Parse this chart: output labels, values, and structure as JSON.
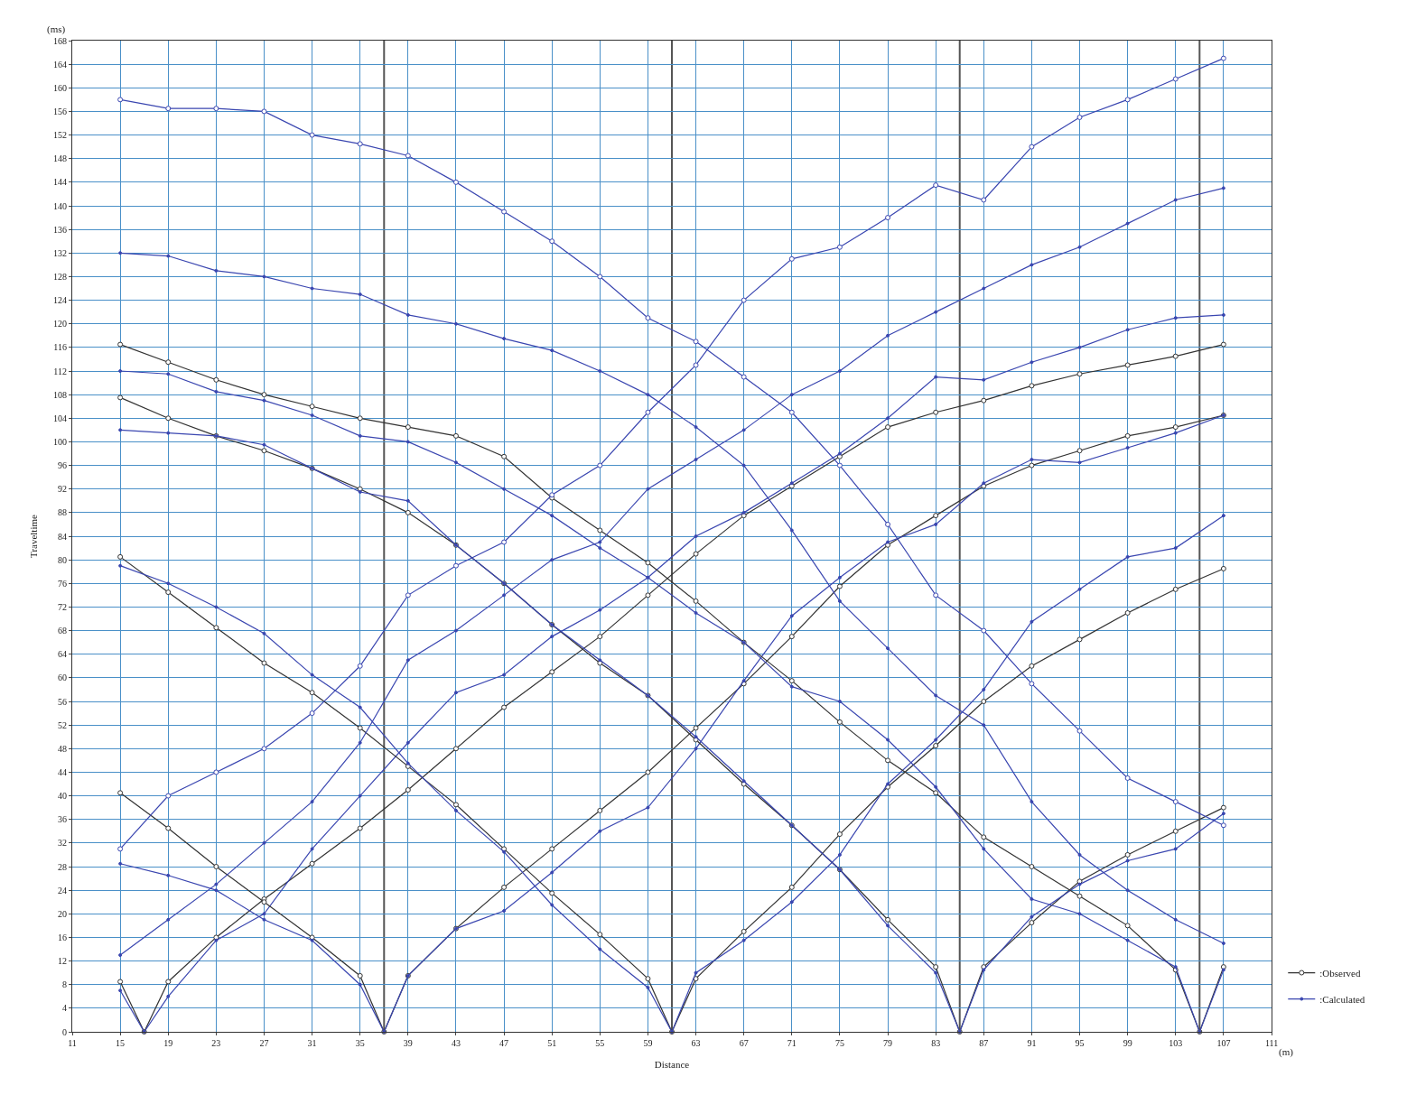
{
  "chart_data": {
    "type": "line",
    "xlabel": "Distance",
    "ylabel": "Traveltime",
    "annotations": [
      "(ms)",
      "(m)"
    ],
    "xlim": [
      11,
      111
    ],
    "xticks": [
      11,
      15,
      19,
      23,
      27,
      31,
      35,
      39,
      43,
      47,
      51,
      55,
      59,
      63,
      67,
      71,
      75,
      79,
      83,
      87,
      91,
      95,
      99,
      103,
      107,
      111
    ],
    "ylim": [
      0,
      168
    ],
    "yticks": [
      0,
      4,
      8,
      12,
      16,
      20,
      24,
      28,
      32,
      36,
      40,
      44,
      48,
      52,
      56,
      60,
      64,
      68,
      72,
      76,
      80,
      84,
      88,
      92,
      96,
      100,
      104,
      108,
      112,
      116,
      120,
      124,
      128,
      132,
      136,
      140,
      144,
      148,
      152,
      156,
      160,
      164,
      168
    ],
    "grid": true,
    "legend": "bottom right",
    "line_style": "solid",
    "ref_lines": [
      {
        "axis": "x",
        "value": 37,
        "color": "#555555"
      },
      {
        "axis": "x",
        "value": 61,
        "color": "#555555"
      },
      {
        "axis": "x",
        "value": 85,
        "color": "#555555"
      },
      {
        "axis": "x",
        "value": 105,
        "color": "#555555"
      }
    ],
    "series": [
      {
        "name": ":Observed",
        "color": "#333333",
        "marker": "circle",
        "x": [
          15,
          17,
          19,
          23,
          27,
          31,
          35,
          39,
          43,
          47,
          51,
          55,
          59,
          63,
          67,
          71,
          75,
          79,
          83,
          87,
          91,
          95,
          99,
          103,
          107
        ],
        "values": [
          8.5,
          0,
          8.5,
          16,
          22.5,
          28.5,
          34.5,
          41,
          48,
          55,
          61,
          67,
          74,
          81,
          87.5,
          92.5,
          97.5,
          102.5,
          105,
          107,
          109.5,
          111.5,
          113,
          114.5,
          116.5
        ]
      },
      {
        "name": ":Calculated",
        "color": "#3a46b0",
        "marker": "circle",
        "x": [
          15,
          17,
          19,
          23,
          27,
          31,
          35,
          39,
          43,
          47,
          51,
          55,
          59,
          63,
          67,
          71,
          75,
          79,
          83,
          87,
          91,
          95,
          99,
          103,
          107
        ],
        "values": [
          7,
          0,
          6,
          15.5,
          20,
          31,
          40,
          49,
          57.5,
          60.5,
          67,
          71.5,
          77,
          84,
          88,
          93,
          98,
          104,
          111,
          110.5,
          113.5,
          116,
          119,
          121,
          121.5
        ]
      },
      {
        "color": "#333333",
        "marker": "circle",
        "x": [
          15,
          19,
          23,
          27,
          31,
          35,
          37,
          39,
          43,
          47,
          51,
          55,
          59,
          63,
          67,
          71,
          75,
          79,
          83,
          87,
          91,
          95,
          99,
          103,
          107
        ],
        "values": [
          40.5,
          34.5,
          28,
          22,
          16,
          9.5,
          0,
          9.5,
          17.5,
          24.5,
          31,
          37.5,
          44,
          51.5,
          59,
          67,
          75.5,
          82.5,
          87.5,
          92.5,
          96,
          98.5,
          101,
          102.5,
          104.5
        ]
      },
      {
        "color": "#3a46b0",
        "marker": "circle",
        "x": [
          15,
          19,
          23,
          27,
          31,
          35,
          37,
          39,
          43,
          47,
          51,
          55,
          59,
          63,
          67,
          71,
          75,
          79,
          83,
          87,
          91,
          95,
          99,
          103,
          107
        ],
        "values": [
          28.5,
          26.5,
          24,
          19,
          15.5,
          8,
          0,
          9.5,
          17.5,
          20.5,
          27,
          34,
          38,
          48,
          59.5,
          70.5,
          77,
          83,
          86,
          93,
          97,
          96.5,
          99,
          101.5,
          104.5
        ]
      },
      {
        "color": "#333333",
        "marker": "circle",
        "x": [
          15,
          19,
          23,
          27,
          31,
          35,
          39,
          43,
          47,
          51,
          55,
          59,
          61,
          63,
          67,
          71,
          75,
          79,
          83,
          87,
          91,
          95,
          99,
          103,
          107
        ],
        "values": [
          80.5,
          74.5,
          68.5,
          62.5,
          57.5,
          51.5,
          45,
          38.5,
          31,
          23.5,
          16.5,
          9,
          0,
          9,
          17,
          24.5,
          33.5,
          41.5,
          48.5,
          56,
          62,
          66.5,
          71,
          75,
          78.5
        ]
      },
      {
        "color": "#3a46b0",
        "marker": "circle",
        "x": [
          15,
          19,
          23,
          27,
          31,
          35,
          39,
          43,
          47,
          51,
          55,
          59,
          61,
          63,
          67,
          71,
          75,
          79,
          83,
          87,
          91,
          95,
          99,
          103,
          107
        ],
        "values": [
          79,
          76,
          72,
          67.5,
          60.5,
          55,
          45.5,
          37.5,
          30.5,
          21.5,
          14,
          7.5,
          0,
          10,
          15.5,
          22,
          30,
          42,
          49.5,
          58,
          69.5,
          75,
          80.5,
          82,
          87.5
        ]
      },
      {
        "color": "#333333",
        "marker": "circle",
        "x": [
          15,
          19,
          23,
          27,
          31,
          35,
          39,
          43,
          47,
          51,
          55,
          59,
          63,
          67,
          71,
          75,
          79,
          83,
          85,
          87,
          91,
          95,
          99,
          103,
          107
        ],
        "values": [
          107.5,
          104,
          101,
          98.5,
          95.5,
          92,
          88,
          82.5,
          76,
          69,
          62.5,
          57,
          49.5,
          42,
          35,
          27.5,
          19,
          11,
          0,
          11,
          18.5,
          25.5,
          30,
          34,
          38
        ]
      },
      {
        "color": "#3a46b0",
        "marker": "circle",
        "x": [
          15,
          19,
          23,
          27,
          31,
          35,
          39,
          43,
          47,
          51,
          55,
          59,
          63,
          67,
          71,
          75,
          79,
          83,
          85,
          87,
          91,
          95,
          99,
          103,
          107
        ],
        "values": [
          102,
          101.5,
          101,
          99.5,
          95.5,
          91.5,
          90,
          82.5,
          76,
          69,
          63,
          57,
          50,
          42.5,
          35,
          27.5,
          18,
          10,
          0,
          10.5,
          19.5,
          25,
          29,
          31,
          37
        ]
      },
      {
        "color": "#333333",
        "marker": "circle",
        "x": [
          15,
          19,
          23,
          27,
          31,
          35,
          39,
          43,
          47,
          51,
          55,
          59,
          63,
          67,
          71,
          75,
          79,
          83,
          87,
          91,
          95,
          99,
          103,
          105,
          107
        ],
        "values": [
          116.5,
          113.5,
          110.5,
          108,
          106,
          104,
          102.5,
          101,
          97.5,
          90.5,
          85,
          79.5,
          73,
          66,
          59.5,
          52.5,
          46,
          40.5,
          33,
          28,
          23,
          18,
          10.5,
          0,
          11
        ]
      },
      {
        "color": "#3a46b0",
        "marker": "circle",
        "x": [
          15,
          19,
          23,
          27,
          31,
          35,
          39,
          43,
          47,
          51,
          55,
          59,
          63,
          67,
          71,
          75,
          79,
          83,
          87,
          91,
          95,
          99,
          103,
          105,
          107
        ],
        "values": [
          112,
          111.5,
          108.5,
          107,
          104.5,
          101,
          100,
          96.5,
          92,
          87.5,
          82,
          77,
          71,
          66,
          58.5,
          56,
          49.5,
          41.5,
          31,
          22.5,
          20,
          15.5,
          11,
          0,
          10.5
        ]
      },
      {
        "color": "#3a46b0",
        "marker": "circle",
        "x": [
          15,
          19,
          23,
          27,
          31,
          35,
          39,
          43,
          47,
          51,
          55,
          59,
          63,
          67,
          71,
          75,
          79,
          83,
          87,
          91,
          95,
          99,
          103,
          107
        ],
        "values": [
          31,
          40,
          44,
          48,
          54,
          62,
          74,
          79,
          83,
          91,
          96,
          105,
          113,
          124,
          131,
          133,
          138,
          143.5,
          141,
          150,
          155,
          158,
          161.5,
          165
        ]
      },
      {
        "color": "#3a46b0",
        "marker": "circle",
        "x": [
          15,
          19,
          23,
          27,
          31,
          35,
          39,
          43,
          47,
          51,
          55,
          59,
          63,
          67,
          71,
          75,
          79,
          83,
          87,
          91,
          95,
          99,
          103,
          107
        ],
        "values": [
          13,
          19,
          25,
          32,
          39,
          49,
          63,
          68,
          74,
          80,
          83,
          92,
          97,
          102,
          108,
          112,
          118,
          122,
          126,
          130,
          133,
          137,
          141,
          143
        ]
      },
      {
        "color": "#3a46b0",
        "marker": "circle",
        "x": [
          15,
          19,
          23,
          27,
          31,
          35,
          39,
          43,
          47,
          51,
          55,
          59,
          63,
          67,
          71,
          75,
          79,
          83,
          87,
          91,
          95,
          99,
          103,
          107
        ],
        "values": [
          158,
          156.5,
          156.5,
          156,
          152,
          150.5,
          148.5,
          144,
          139,
          134,
          128,
          121,
          117,
          111,
          105,
          96,
          86,
          74,
          68,
          59,
          51,
          43,
          39,
          35
        ]
      },
      {
        "color": "#3a46b0",
        "marker": "circle",
        "x": [
          15,
          19,
          23,
          27,
          31,
          35,
          39,
          43,
          47,
          51,
          55,
          59,
          63,
          67,
          71,
          75,
          79,
          83,
          87,
          91,
          95,
          99,
          103,
          107
        ],
        "values": [
          132,
          131.5,
          129,
          128,
          126,
          125,
          121.5,
          120,
          117.5,
          115.5,
          112,
          108,
          102.5,
          96,
          85,
          73,
          65,
          57,
          52,
          39,
          30,
          24,
          19,
          15
        ]
      }
    ]
  }
}
